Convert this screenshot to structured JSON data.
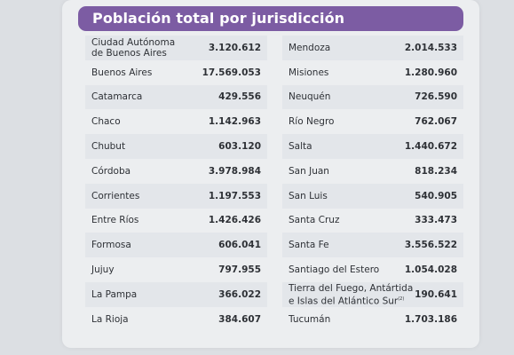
{
  "title": "Población total por jurisdicción",
  "left_rows": [
    {
      "name": "Ciudad Autónoma\nde Buenos Aires",
      "value": "3.120.612"
    },
    {
      "name": "Buenos Aires",
      "value": "17.569.053"
    },
    {
      "name": "Catamarca",
      "value": "429.556"
    },
    {
      "name": "Chaco",
      "value": "1.142.963"
    },
    {
      "name": "Chubut",
      "value": "603.120"
    },
    {
      "name": "Córdoba",
      "value": "3.978.984"
    },
    {
      "name": "Corrientes",
      "value": "1.197.553"
    },
    {
      "name": "Entre Ríos",
      "value": "1.426.426"
    },
    {
      "name": "Formosa",
      "value": "606.041"
    },
    {
      "name": "Jujuy",
      "value": "797.955"
    },
    {
      "name": "La Pampa",
      "value": "366.022"
    },
    {
      "name": "La Rioja",
      "value": "384.607"
    }
  ],
  "right_rows": [
    {
      "name": "Mendoza",
      "value": "2.014.533"
    },
    {
      "name": "Misiones",
      "value": "1.280.960"
    },
    {
      "name": "Neuquén",
      "value": "726.590"
    },
    {
      "name": "Río Negro",
      "value": "762.067"
    },
    {
      "name": "Salta",
      "value": "1.440.672"
    },
    {
      "name": "San Juan",
      "value": "818.234"
    },
    {
      "name": "San Luis",
      "value": "540.905"
    },
    {
      "name": "Santa Cruz",
      "value": "333.473"
    },
    {
      "name": "Santa Fe",
      "value": "3.556.522"
    },
    {
      "name": "Santiago del Estero",
      "value": "1.054.028"
    },
    {
      "name": "Tierra del Fuego, Antártida\ne Islas del Atlántico Sur",
      "value": "190.641",
      "note": "(2)"
    },
    {
      "name": "Tucumán",
      "value": "1.703.186"
    }
  ],
  "colors": {
    "header_bg": "#7c5ca3",
    "row_alt": "#e3e6ea",
    "text": "#2e3136"
  }
}
